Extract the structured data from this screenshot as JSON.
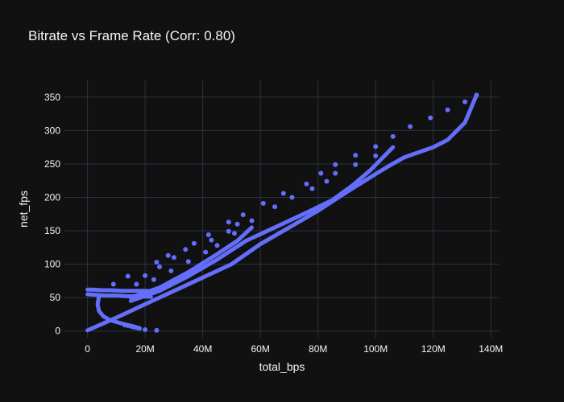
{
  "chart_data": {
    "type": "scatter",
    "title": "Bitrate vs Frame Rate (Corr: 0.80)",
    "xlabel": "total_bps",
    "ylabel": "net_fps",
    "xlim": [
      -8000000,
      143000000
    ],
    "ylim": [
      -10,
      375
    ],
    "grid": true,
    "x_ticks": [
      {
        "value": 0,
        "label": "0"
      },
      {
        "value": 20000000,
        "label": "20M"
      },
      {
        "value": 40000000,
        "label": "40M"
      },
      {
        "value": 60000000,
        "label": "60M"
      },
      {
        "value": 80000000,
        "label": "80M"
      },
      {
        "value": 100000000,
        "label": "100M"
      },
      {
        "value": 120000000,
        "label": "120M"
      },
      {
        "value": 140000000,
        "label": "140M"
      }
    ],
    "y_ticks": [
      {
        "value": 0,
        "label": "0"
      },
      {
        "value": 50,
        "label": "50"
      },
      {
        "value": 100,
        "label": "100"
      },
      {
        "value": 150,
        "label": "150"
      },
      {
        "value": 200,
        "label": "200"
      },
      {
        "value": 250,
        "label": "250"
      },
      {
        "value": 300,
        "label": "300"
      },
      {
        "value": 350,
        "label": "350"
      }
    ],
    "marker_color": "#636efa",
    "series": [
      {
        "points": [
          [
            135000000,
            353
          ],
          [
            131000000,
            343
          ],
          [
            125000000,
            331
          ],
          [
            119000000,
            319
          ],
          [
            112000000,
            306
          ],
          [
            106000000,
            291
          ],
          [
            100000000,
            276
          ],
          [
            100000000,
            262
          ],
          [
            93000000,
            263
          ],
          [
            93000000,
            249
          ],
          [
            86000000,
            249
          ],
          [
            86000000,
            236
          ],
          [
            81000000,
            236
          ],
          [
            83000000,
            224
          ],
          [
            76000000,
            220
          ],
          [
            78000000,
            213
          ],
          [
            71000000,
            200
          ],
          [
            68000000,
            206
          ],
          [
            65000000,
            186
          ],
          [
            61000000,
            191
          ],
          [
            57000000,
            165
          ],
          [
            54000000,
            174
          ],
          [
            52000000,
            160
          ],
          [
            51000000,
            146
          ],
          [
            49000000,
            163
          ],
          [
            49000000,
            149
          ],
          [
            45000000,
            128
          ],
          [
            43000000,
            136
          ],
          [
            42000000,
            144
          ],
          [
            41000000,
            118
          ],
          [
            37000000,
            131
          ],
          [
            35000000,
            104
          ],
          [
            34000000,
            122
          ],
          [
            30000000,
            110
          ],
          [
            29000000,
            90
          ],
          [
            28000000,
            113
          ],
          [
            25000000,
            96
          ],
          [
            24000000,
            103
          ],
          [
            23000000,
            77
          ],
          [
            20000000,
            83
          ],
          [
            17000000,
            70
          ],
          [
            14000000,
            82
          ],
          [
            9000000,
            70
          ],
          [
            24000000,
            1
          ],
          [
            20000000,
            2
          ],
          [
            18000000,
            4
          ],
          [
            17000000,
            5
          ],
          [
            16000000,
            6
          ],
          [
            15000000,
            7
          ],
          [
            14000000,
            8
          ],
          [
            13000000,
            9
          ]
        ]
      },
      {
        "polyline": [
          [
            0,
            1
          ],
          [
            10000000,
            20
          ],
          [
            20000000,
            40
          ],
          [
            30000000,
            60
          ],
          [
            40000000,
            80
          ],
          [
            50000000,
            100
          ],
          [
            60000000,
            130
          ],
          [
            70000000,
            155
          ],
          [
            80000000,
            180
          ],
          [
            90000000,
            208
          ],
          [
            100000000,
            235
          ],
          [
            105000000,
            248
          ],
          [
            110000000,
            260
          ],
          [
            120000000,
            275
          ],
          [
            125000000,
            286
          ],
          [
            131000000,
            312
          ],
          [
            135000000,
            353
          ]
        ]
      },
      {
        "polyline": [
          [
            15000000,
            45
          ],
          [
            25000000,
            60
          ],
          [
            35000000,
            82
          ],
          [
            45000000,
            107
          ],
          [
            55000000,
            135
          ],
          [
            65000000,
            155
          ],
          [
            75000000,
            175
          ],
          [
            85000000,
            196
          ],
          [
            92000000,
            218
          ],
          [
            98000000,
            240
          ],
          [
            106000000,
            275
          ]
        ]
      },
      {
        "polyline": [
          [
            15000000,
            50
          ],
          [
            25000000,
            65
          ],
          [
            35000000,
            88
          ],
          [
            45000000,
            115
          ],
          [
            52000000,
            135
          ],
          [
            57000000,
            155
          ]
        ]
      },
      {
        "polyline": [
          [
            0,
            62
          ],
          [
            2000000,
            62
          ],
          [
            5000000,
            61
          ],
          [
            8000000,
            61
          ],
          [
            12000000,
            60
          ],
          [
            16000000,
            60
          ],
          [
            20000000,
            60
          ],
          [
            24000000,
            59
          ]
        ]
      },
      {
        "polyline": [
          [
            0,
            55
          ],
          [
            3000000,
            54
          ],
          [
            6000000,
            53
          ],
          [
            10000000,
            53
          ],
          [
            14000000,
            52
          ],
          [
            18000000,
            52
          ],
          [
            22000000,
            51
          ]
        ]
      },
      {
        "polyline": [
          [
            4000000,
            52
          ],
          [
            3500000,
            40
          ],
          [
            4000000,
            30
          ],
          [
            5500000,
            22
          ],
          [
            8000000,
            16
          ],
          [
            12000000,
            11
          ],
          [
            16000000,
            7
          ],
          [
            18000000,
            4
          ]
        ]
      }
    ]
  }
}
